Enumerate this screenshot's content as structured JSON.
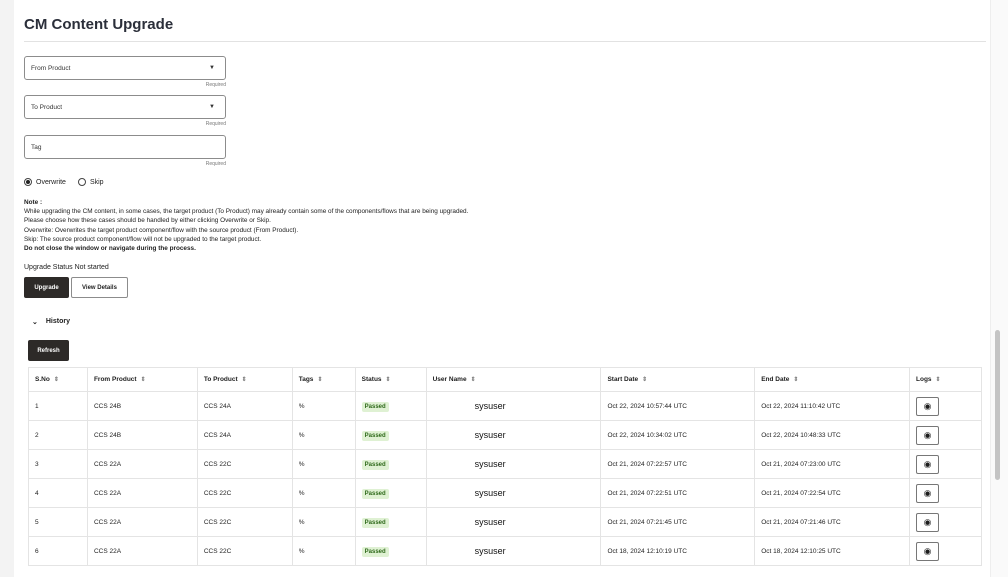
{
  "title": "CM Content Upgrade",
  "form": {
    "from_product": "From Product",
    "to_product": "To Product",
    "tag": "Tag",
    "required": "Required"
  },
  "mode": {
    "options": [
      "Overwrite",
      "Skip"
    ],
    "selected": "Overwrite"
  },
  "note": {
    "heading": "Note :",
    "lines": [
      "While upgrading the CM content, in some cases, the target product (To Product) may already contain some of the components/flows that are being upgraded.",
      "Please choose how these cases should be handled by either clicking Overwrite or Skip.",
      "Overwrite: Overwrites the target product component/flow with the source product (From Product).",
      "Skip: The source product component/flow will not be upgraded to the target product."
    ],
    "warning": "Do not close the window or navigate during the process."
  },
  "upgrade_status": "Upgrade Status Not started",
  "buttons": {
    "upgrade": "Upgrade",
    "view_details": "View Details",
    "refresh": "Refresh"
  },
  "history": {
    "label": "History",
    "icon": "chevron-down-icon"
  },
  "table": {
    "columns": [
      "S.No",
      "From Product",
      "To Product",
      "Tags",
      "Status",
      "User Name",
      "Start Date",
      "End Date",
      "Logs"
    ],
    "rows": [
      [
        "1",
        "CCS 24B",
        "CCS 24A",
        "%",
        "Passed",
        "sysuser",
        "Oct 22, 2024 10:57:44 UTC",
        "Oct 22, 2024 11:10:42 UTC"
      ],
      [
        "2",
        "CCS 24B",
        "CCS 24A",
        "%",
        "Passed",
        "sysuser",
        "Oct 22, 2024 10:34:02 UTC",
        "Oct 22, 2024 10:48:33 UTC"
      ],
      [
        "3",
        "CCS 22A",
        "CCS 22C",
        "%",
        "Passed",
        "sysuser",
        "Oct 21, 2024 07:22:57 UTC",
        "Oct 21, 2024 07:23:00 UTC"
      ],
      [
        "4",
        "CCS 22A",
        "CCS 22C",
        "%",
        "Passed",
        "sysuser",
        "Oct 21, 2024 07:22:51 UTC",
        "Oct 21, 2024 07:22:54 UTC"
      ],
      [
        "5",
        "CCS 22A",
        "CCS 22C",
        "%",
        "Passed",
        "sysuser",
        "Oct 21, 2024 07:21:45 UTC",
        "Oct 21, 2024 07:21:46 UTC"
      ],
      [
        "6",
        "CCS 22A",
        "CCS 22C",
        "%",
        "Passed",
        "sysuser",
        "Oct 18, 2024 12:10:19 UTC",
        "Oct 18, 2024 12:10:25 UTC"
      ]
    ]
  }
}
